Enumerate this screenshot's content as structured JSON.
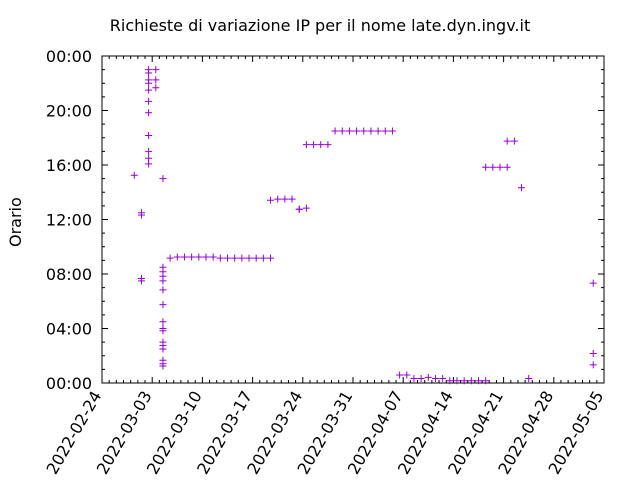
{
  "chart_data": {
    "type": "scatter",
    "title": "Richieste di variazione IP per il nome late.dyn.ingv.it",
    "xlabel": "",
    "ylabel": "Orario",
    "x_ticks": [
      "2022-02-24",
      "2022-03-03",
      "2022-03-10",
      "2022-03-17",
      "2022-03-24",
      "2022-03-31",
      "2022-04-07",
      "2022-04-14",
      "2022-04-21",
      "2022-04-28",
      "2022-05-05"
    ],
    "y_ticks": [
      "00:00",
      "04:00",
      "08:00",
      "12:00",
      "16:00",
      "20:00",
      "00:00"
    ],
    "xlim": [
      "2022-02-24",
      "2022-05-05"
    ],
    "ylim": [
      "00:00",
      "24:00"
    ],
    "marker": "+",
    "color": "#9400d3",
    "points": [
      [
        "2022-02-28",
        "15:15"
      ],
      [
        "2022-03-01",
        "12:20"
      ],
      [
        "2022-03-01",
        "12:30"
      ],
      [
        "2022-03-01",
        "07:30"
      ],
      [
        "2022-03-01",
        "07:40"
      ],
      [
        "2022-03-02",
        "23:00"
      ],
      [
        "2022-03-02",
        "22:45"
      ],
      [
        "2022-03-02",
        "22:15"
      ],
      [
        "2022-03-02",
        "22:00"
      ],
      [
        "2022-03-02",
        "21:30"
      ],
      [
        "2022-03-02",
        "20:40"
      ],
      [
        "2022-03-02",
        "19:50"
      ],
      [
        "2022-03-02",
        "18:10"
      ],
      [
        "2022-03-02",
        "17:00"
      ],
      [
        "2022-03-02",
        "16:30"
      ],
      [
        "2022-03-02",
        "16:05"
      ],
      [
        "2022-03-03",
        "23:00"
      ],
      [
        "2022-03-03",
        "22:15"
      ],
      [
        "2022-03-03",
        "21:40"
      ],
      [
        "2022-03-04",
        "15:00"
      ],
      [
        "2022-03-04",
        "08:30"
      ],
      [
        "2022-03-04",
        "08:10"
      ],
      [
        "2022-03-04",
        "07:50"
      ],
      [
        "2022-03-04",
        "07:30"
      ],
      [
        "2022-03-04",
        "06:50"
      ],
      [
        "2022-03-04",
        "05:45"
      ],
      [
        "2022-03-04",
        "04:30"
      ],
      [
        "2022-03-04",
        "04:00"
      ],
      [
        "2022-03-04",
        "03:50"
      ],
      [
        "2022-03-04",
        "03:00"
      ],
      [
        "2022-03-04",
        "02:45"
      ],
      [
        "2022-03-04",
        "02:30"
      ],
      [
        "2022-03-04",
        "01:40"
      ],
      [
        "2022-03-04",
        "01:25"
      ],
      [
        "2022-03-04",
        "01:15"
      ],
      [
        "2022-03-05",
        "09:10"
      ],
      [
        "2022-03-06",
        "09:15"
      ],
      [
        "2022-03-07",
        "09:15"
      ],
      [
        "2022-03-08",
        "09:15"
      ],
      [
        "2022-03-09",
        "09:15"
      ],
      [
        "2022-03-10",
        "09:15"
      ],
      [
        "2022-03-11",
        "09:15"
      ],
      [
        "2022-03-12",
        "09:10"
      ],
      [
        "2022-03-13",
        "09:10"
      ],
      [
        "2022-03-14",
        "09:10"
      ],
      [
        "2022-03-15",
        "09:10"
      ],
      [
        "2022-03-16",
        "09:10"
      ],
      [
        "2022-03-17",
        "09:10"
      ],
      [
        "2022-03-18",
        "09:10"
      ],
      [
        "2022-03-19",
        "09:10"
      ],
      [
        "2022-03-19",
        "13:25"
      ],
      [
        "2022-03-20",
        "13:30"
      ],
      [
        "2022-03-21",
        "13:30"
      ],
      [
        "2022-03-22",
        "13:30"
      ],
      [
        "2022-03-23",
        "12:45"
      ],
      [
        "2022-03-23",
        "12:45"
      ],
      [
        "2022-03-24",
        "12:50"
      ],
      [
        "2022-03-24",
        "17:30"
      ],
      [
        "2022-03-25",
        "17:30"
      ],
      [
        "2022-03-26",
        "17:30"
      ],
      [
        "2022-03-27",
        "17:30"
      ],
      [
        "2022-03-28",
        "18:30"
      ],
      [
        "2022-03-29",
        "18:30"
      ],
      [
        "2022-03-30",
        "18:30"
      ],
      [
        "2022-03-31",
        "18:30"
      ],
      [
        "2022-04-01",
        "18:30"
      ],
      [
        "2022-04-02",
        "18:30"
      ],
      [
        "2022-04-03",
        "18:30"
      ],
      [
        "2022-04-04",
        "18:30"
      ],
      [
        "2022-04-05",
        "18:30"
      ],
      [
        "2022-04-06",
        "00:35"
      ],
      [
        "2022-04-07",
        "00:35"
      ],
      [
        "2022-04-08",
        "00:20"
      ],
      [
        "2022-04-09",
        "00:20"
      ],
      [
        "2022-04-10",
        "00:25"
      ],
      [
        "2022-04-11",
        "00:20"
      ],
      [
        "2022-04-12",
        "00:20"
      ],
      [
        "2022-04-13",
        "00:10"
      ],
      [
        "2022-04-14",
        "00:10"
      ],
      [
        "2022-04-15",
        "00:10"
      ],
      [
        "2022-04-16",
        "00:10"
      ],
      [
        "2022-04-17",
        "00:10"
      ],
      [
        "2022-04-18",
        "00:10"
      ],
      [
        "2022-04-18",
        "15:50"
      ],
      [
        "2022-04-19",
        "15:50"
      ],
      [
        "2022-04-20",
        "15:50"
      ],
      [
        "2022-04-21",
        "15:50"
      ],
      [
        "2022-04-21",
        "17:45"
      ],
      [
        "2022-04-22",
        "17:45"
      ],
      [
        "2022-04-23",
        "14:20"
      ],
      [
        "2022-04-24",
        "00:20"
      ],
      [
        "2022-05-03",
        "07:20"
      ],
      [
        "2022-05-03",
        "02:10"
      ],
      [
        "2022-05-03",
        "01:20"
      ]
    ]
  }
}
